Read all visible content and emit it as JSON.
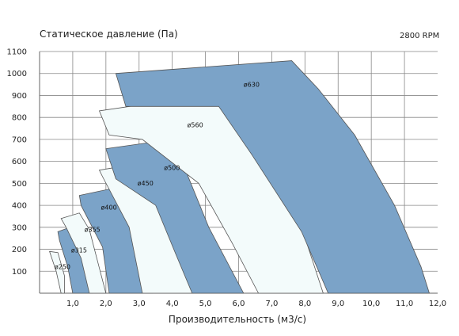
{
  "chart_data": {
    "type": "area",
    "title": "",
    "ylabel": "Статическое давление (Па)",
    "xlabel": "Производительность (м3/с)",
    "annotation": "2800 RPM",
    "xlim": [
      0,
      12.0
    ],
    "ylim": [
      0,
      1100
    ],
    "x_ticks": [
      "1,0",
      "2,0",
      "3,0",
      "4,0",
      "5,0",
      "6,0",
      "7,0",
      "8,0",
      "9,0",
      "10,0",
      "11,0",
      "12,0"
    ],
    "y_ticks": [
      "100",
      "200",
      "300",
      "400",
      "500",
      "600",
      "700",
      "800",
      "900",
      "1000",
      "1100"
    ],
    "grid": true,
    "colors": {
      "fill_blue": "#7ba3c8",
      "fill_light": "#f3fbfb",
      "edge": "#555555",
      "grid": "#888888"
    },
    "series": [
      {
        "name": "ø250",
        "fill": "light",
        "outline": [
          [
            0.3,
            190
          ],
          [
            0.55,
            185
          ],
          [
            0.75,
            80
          ],
          [
            0.75,
            0
          ],
          [
            0.65,
            0
          ],
          [
            0.5,
            100
          ]
        ]
      },
      {
        "name": "ø315",
        "fill": "blue",
        "outline": [
          [
            0.55,
            280
          ],
          [
            1.1,
            310
          ],
          [
            1.3,
            200
          ],
          [
            1.6,
            0
          ],
          [
            1.0,
            0
          ],
          [
            0.85,
            120
          ],
          [
            0.6,
            240
          ]
        ]
      },
      {
        "name": "ø355",
        "fill": "light",
        "outline": [
          [
            0.65,
            340
          ],
          [
            1.2,
            365
          ],
          [
            1.5,
            290
          ],
          [
            2.0,
            0
          ],
          [
            1.5,
            0
          ],
          [
            1.25,
            160
          ],
          [
            0.8,
            300
          ]
        ]
      },
      {
        "name": "ø400",
        "fill": "blue",
        "outline": [
          [
            1.2,
            445
          ],
          [
            2.3,
            480
          ],
          [
            2.6,
            360
          ],
          [
            3.4,
            0
          ],
          [
            2.1,
            0
          ],
          [
            1.9,
            210
          ],
          [
            1.25,
            400
          ]
        ]
      },
      {
        "name": "ø450",
        "fill": "light",
        "outline": [
          [
            1.8,
            560
          ],
          [
            3.4,
            600
          ],
          [
            3.7,
            460
          ],
          [
            4.65,
            0
          ],
          [
            3.1,
            0
          ],
          [
            2.7,
            300
          ],
          [
            1.9,
            530
          ]
        ]
      },
      {
        "name": "ø500",
        "fill": "blue",
        "outline": [
          [
            2.0,
            658
          ],
          [
            4.0,
            700
          ],
          [
            4.4,
            560
          ],
          [
            5.1,
            300
          ],
          [
            6.15,
            0
          ],
          [
            4.6,
            0
          ],
          [
            4.1,
            180
          ],
          [
            3.5,
            400
          ],
          [
            2.3,
            520
          ]
        ]
      },
      {
        "name": "ø560",
        "fill": "light",
        "outline": [
          [
            1.8,
            830
          ],
          [
            5.2,
            905
          ],
          [
            5.7,
            800
          ],
          [
            6.6,
            600
          ],
          [
            7.9,
            300
          ],
          [
            8.55,
            0
          ],
          [
            6.6,
            0
          ],
          [
            5.8,
            230
          ],
          [
            4.8,
            500
          ],
          [
            3.1,
            700
          ],
          [
            2.1,
            720
          ]
        ]
      },
      {
        "name": "ø630",
        "fill": "blue",
        "outline": [
          [
            2.3,
            1000
          ],
          [
            7.6,
            1058
          ],
          [
            8.4,
            930
          ],
          [
            9.5,
            720
          ],
          [
            10.7,
            400
          ],
          [
            11.5,
            120
          ],
          [
            11.75,
            0
          ],
          [
            8.7,
            0
          ],
          [
            7.9,
            280
          ],
          [
            6.4,
            630
          ],
          [
            5.4,
            850
          ],
          [
            2.6,
            850
          ]
        ]
      }
    ],
    "labels": [
      {
        "text": "ø250",
        "x": 0.45,
        "y": 110
      },
      {
        "text": "ø315",
        "x": 0.95,
        "y": 185
      },
      {
        "text": "ø355",
        "x": 1.35,
        "y": 280
      },
      {
        "text": "ø400",
        "x": 1.85,
        "y": 380
      },
      {
        "text": "ø450",
        "x": 2.95,
        "y": 490
      },
      {
        "text": "ø500",
        "x": 3.75,
        "y": 560
      },
      {
        "text": "ø560",
        "x": 4.45,
        "y": 755
      },
      {
        "text": "ø630",
        "x": 6.15,
        "y": 940
      }
    ]
  }
}
